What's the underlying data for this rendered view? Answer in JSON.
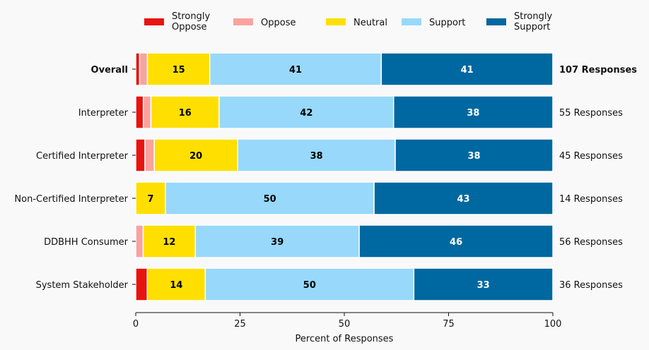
{
  "chart_data": {
    "type": "bar",
    "orientation": "horizontal",
    "stacked": true,
    "title": "",
    "xlabel": "Percent of Responses",
    "ylabel": "",
    "xlim": [
      0,
      100
    ],
    "xticks": [
      0,
      25,
      50,
      75,
      100
    ],
    "grid": false,
    "legend_position": "top",
    "categories": [
      "Overall",
      "Interpreter",
      "Certified Interpreter",
      "Non-Certified Interpreter",
      "DDBHH Consumer",
      "System Stakeholder"
    ],
    "bold_categories": [
      "Overall"
    ],
    "responses": [
      "107 Responses",
      "55 Responses",
      "45 Responses",
      "14 Responses",
      "56 Responses",
      "36 Responses"
    ],
    "series": [
      {
        "name": "Strongly Oppose",
        "legend_lines": [
          "Strongly",
          "Oppose"
        ],
        "color": "#e8140f",
        "label_color": "#000000",
        "values": [
          0.93,
          1.82,
          2.22,
          0,
          0,
          2.78
        ],
        "labels": [
          "",
          "",
          "",
          "",
          "",
          ""
        ]
      },
      {
        "name": "Oppose",
        "legend_lines": [
          "Oppose"
        ],
        "color": "#f9a39e",
        "label_color": "#000000",
        "values": [
          1.87,
          1.82,
          2.22,
          0,
          1.79,
          0
        ],
        "labels": [
          "",
          "",
          "",
          "",
          "",
          ""
        ]
      },
      {
        "name": "Neutral",
        "legend_lines": [
          "Neutral"
        ],
        "color": "#ffdf00",
        "label_color": "#000000",
        "values": [
          14.95,
          16.36,
          20.0,
          7.14,
          12.5,
          13.89
        ],
        "labels": [
          "15",
          "16",
          "20",
          "7",
          "12",
          "14"
        ]
      },
      {
        "name": "Support",
        "legend_lines": [
          "Support"
        ],
        "color": "#98d8fb",
        "label_color": "#000000",
        "values": [
          41.12,
          41.82,
          37.78,
          50.0,
          39.29,
          50.0
        ],
        "labels": [
          "41",
          "42",
          "38",
          "50",
          "39",
          "50"
        ]
      },
      {
        "name": "Strongly Support",
        "legend_lines": [
          "Strongly",
          "Support"
        ],
        "color": "#0068a0",
        "label_color": "#ffffff",
        "values": [
          41.12,
          38.18,
          37.78,
          42.86,
          46.43,
          33.33
        ],
        "labels": [
          "41",
          "38",
          "38",
          "43",
          "46",
          "33"
        ]
      }
    ]
  }
}
